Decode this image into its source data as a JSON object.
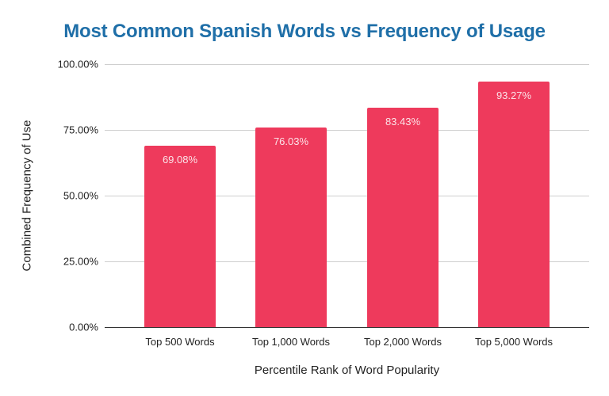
{
  "chart_data": {
    "type": "bar",
    "title": "Most Common Spanish Words vs Frequency of Usage",
    "xlabel": "Percentile Rank of Word Popularity",
    "ylabel": "Combined Frequency of Use",
    "categories": [
      "Top 500 Words",
      "Top 1,000 Words",
      "Top 2,000 Words",
      "Top 5,000 Words"
    ],
    "values": [
      69.08,
      76.03,
      83.43,
      93.27
    ],
    "data_labels": [
      "69.08%",
      "76.03%",
      "83.43%",
      "93.27%"
    ],
    "ylim": [
      0,
      100
    ],
    "yticks": [
      "0.00%",
      "25.00%",
      "50.00%",
      "75.00%",
      "100.00%"
    ],
    "grid": true,
    "legend": "none",
    "colors": {
      "bar": "#ee3a5c",
      "title": "#1f6fa8",
      "bar_label": "#fbe3e8"
    }
  }
}
